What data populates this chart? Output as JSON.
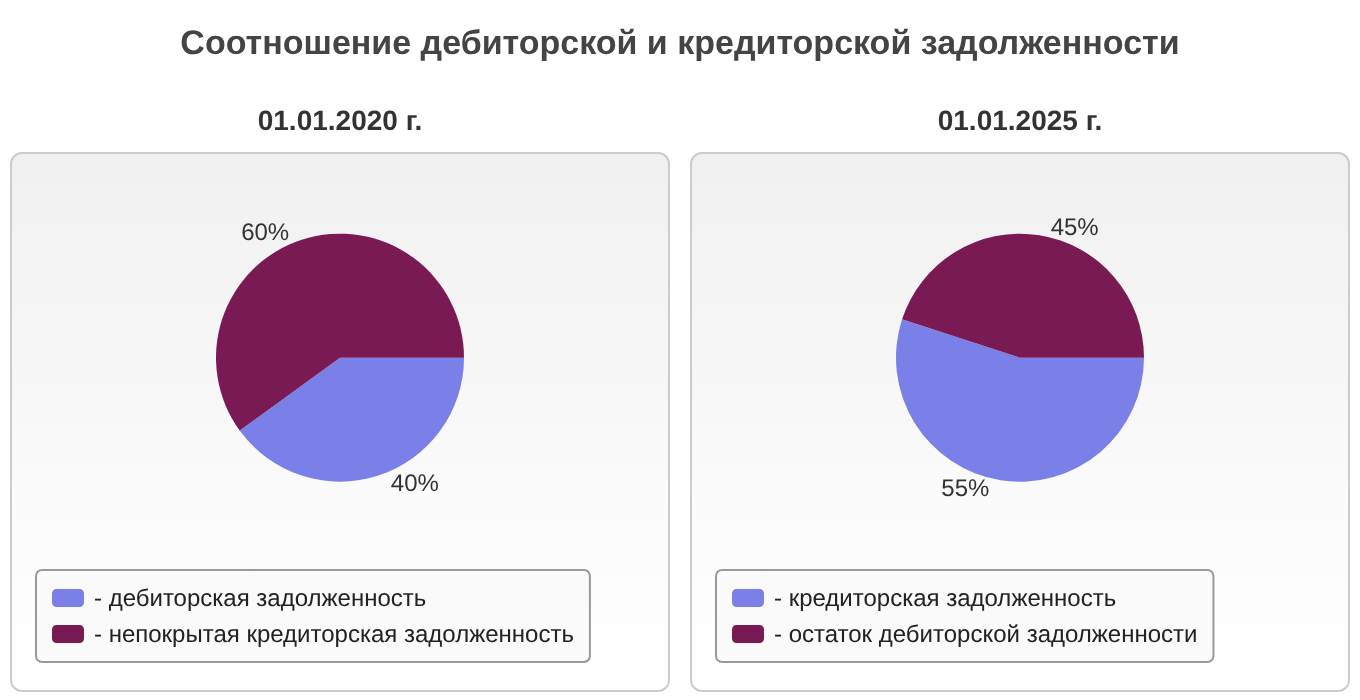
{
  "chart_data": [
    {
      "type": "pie",
      "title": "Соотношение дебиторской и кредиторской задолженности",
      "subtitle": "01.01.2020 г.",
      "categories": [
        "- дебиторская задолженность",
        "- непокрытая кредиторская задолженность"
      ],
      "values": [
        40,
        60
      ],
      "value_labels": [
        "40%",
        "60%"
      ],
      "colors": [
        "#7b7fe8",
        "#7a1a55"
      ],
      "legend": "bottom"
    },
    {
      "type": "pie",
      "subtitle": "01.01.2025 г.",
      "categories": [
        "- кредиторская задолженность",
        "- остаток дебиторской задолженности"
      ],
      "values": [
        55,
        45
      ],
      "value_labels": [
        "55%",
        "45%"
      ],
      "colors": [
        "#7b7fe8",
        "#7a1a55"
      ],
      "legend": "bottom"
    }
  ]
}
